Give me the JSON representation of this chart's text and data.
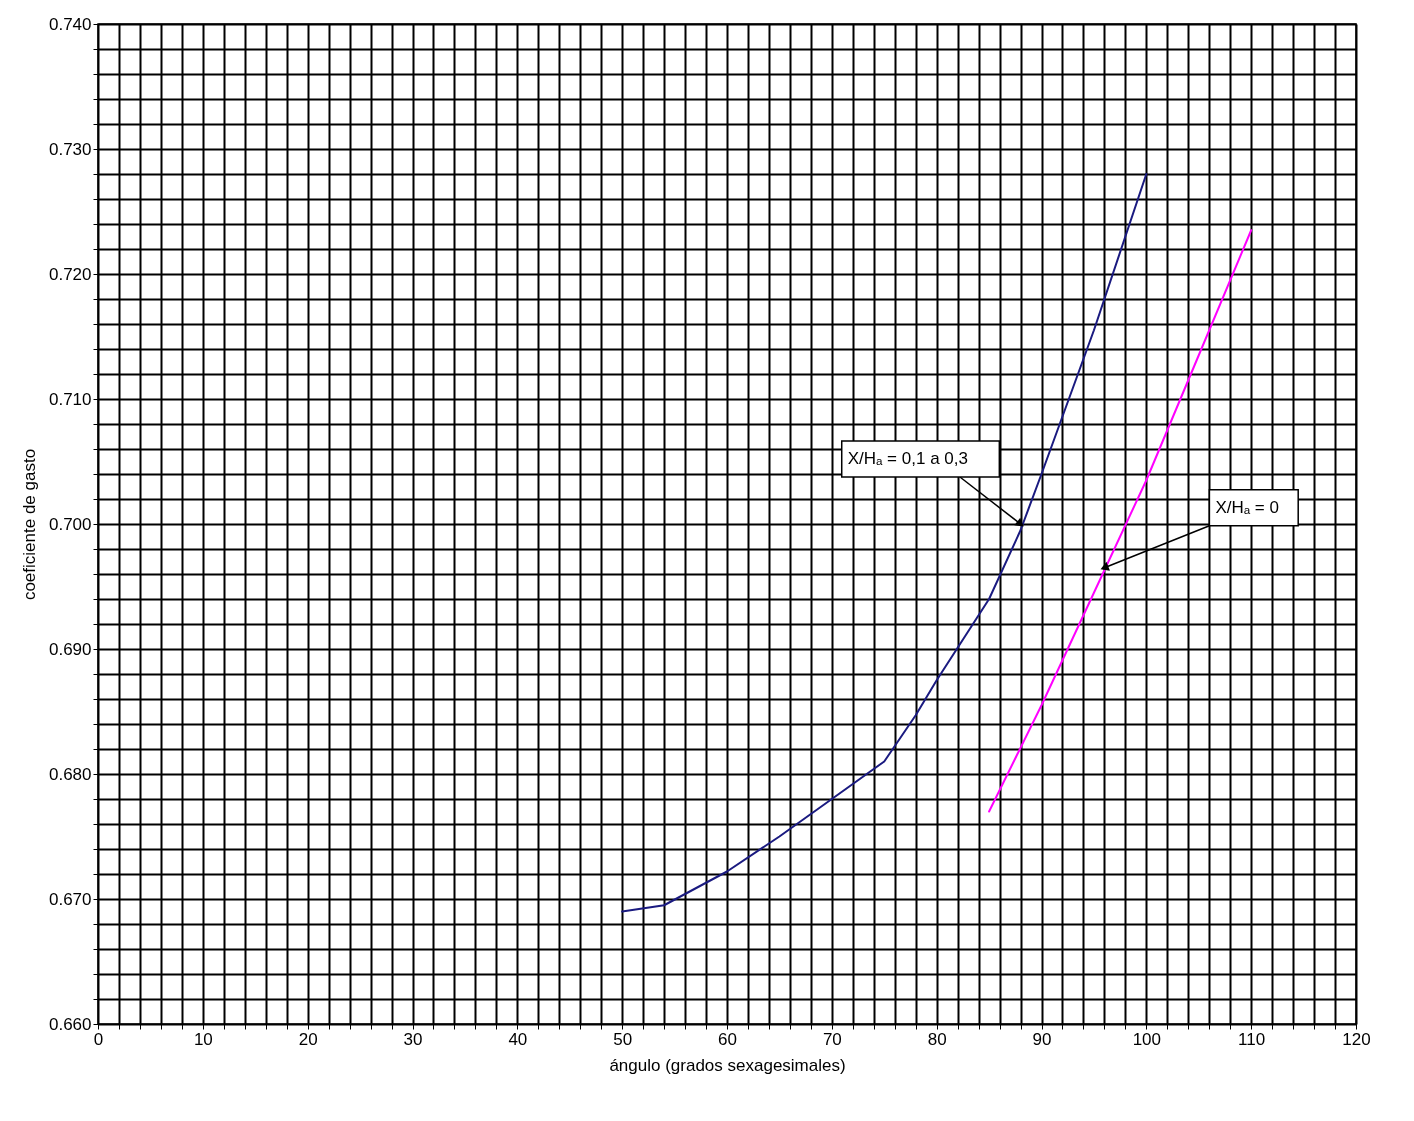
{
  "chart_data": {
    "type": "line",
    "xlabel": "ángulo (grados sexagesimales)",
    "ylabel": "coeficiente de gasto",
    "xlim": [
      0,
      120
    ],
    "xticks": [
      0,
      {
        "value": 2,
        "label": null
      },
      {
        "value": 4,
        "label": null
      },
      {
        "value": 6,
        "label": null
      },
      {
        "value": 8,
        "label": null
      },
      10,
      {
        "value": 12,
        "label": null
      },
      {
        "value": 14,
        "label": null
      },
      {
        "value": 16,
        "label": null
      },
      {
        "value": 18,
        "label": null
      },
      20,
      {
        "value": 22,
        "label": null
      },
      {
        "value": 24,
        "label": null
      },
      {
        "value": 26,
        "label": null
      },
      {
        "value": 28,
        "label": null
      },
      30,
      {
        "value": 32,
        "label": null
      },
      {
        "value": 34,
        "label": null
      },
      {
        "value": 36,
        "label": null
      },
      {
        "value": 38,
        "label": null
      },
      40,
      {
        "value": 42,
        "label": null
      },
      {
        "value": 44,
        "label": null
      },
      {
        "value": 46,
        "label": null
      },
      {
        "value": 48,
        "label": null
      },
      50,
      {
        "value": 52,
        "label": null
      },
      {
        "value": 54,
        "label": null
      },
      {
        "value": 56,
        "label": null
      },
      {
        "value": 58,
        "label": null
      },
      60,
      {
        "value": 62,
        "label": null
      },
      {
        "value": 64,
        "label": null
      },
      {
        "value": 66,
        "label": null
      },
      {
        "value": 68,
        "label": null
      },
      70,
      {
        "value": 72,
        "label": null
      },
      {
        "value": 74,
        "label": null
      },
      {
        "value": 76,
        "label": null
      },
      {
        "value": 78,
        "label": null
      },
      80,
      {
        "value": 82,
        "label": null
      },
      {
        "value": 84,
        "label": null
      },
      {
        "value": 86,
        "label": null
      },
      {
        "value": 88,
        "label": null
      },
      90,
      {
        "value": 92,
        "label": null
      },
      {
        "value": 94,
        "label": null
      },
      {
        "value": 96,
        "label": null
      },
      {
        "value": 98,
        "label": null
      },
      100,
      {
        "value": 102,
        "label": null
      },
      {
        "value": 104,
        "label": null
      },
      {
        "value": 106,
        "label": null
      },
      {
        "value": 108,
        "label": null
      },
      110,
      {
        "value": 112,
        "label": null
      },
      {
        "value": 114,
        "label": null
      },
      {
        "value": 116,
        "label": null
      },
      {
        "value": 118,
        "label": null
      },
      120
    ],
    "ylim": [
      0.66,
      0.74
    ],
    "yticks": [
      {
        "value": 0.66,
        "label": "0.660"
      },
      {
        "value": 0.662,
        "label": null
      },
      {
        "value": 0.664,
        "label": null
      },
      {
        "value": 0.666,
        "label": null
      },
      {
        "value": 0.668,
        "label": null
      },
      {
        "value": 0.67,
        "label": "0.670"
      },
      {
        "value": 0.672,
        "label": null
      },
      {
        "value": 0.674,
        "label": null
      },
      {
        "value": 0.676,
        "label": null
      },
      {
        "value": 0.678,
        "label": null
      },
      {
        "value": 0.68,
        "label": "0.680"
      },
      {
        "value": 0.682,
        "label": null
      },
      {
        "value": 0.684,
        "label": null
      },
      {
        "value": 0.686,
        "label": null
      },
      {
        "value": 0.688,
        "label": null
      },
      {
        "value": 0.69,
        "label": "0.690"
      },
      {
        "value": 0.692,
        "label": null
      },
      {
        "value": 0.694,
        "label": null
      },
      {
        "value": 0.696,
        "label": null
      },
      {
        "value": 0.698,
        "label": null
      },
      {
        "value": 0.7,
        "label": "0.700"
      },
      {
        "value": 0.702,
        "label": null
      },
      {
        "value": 0.704,
        "label": null
      },
      {
        "value": 0.706,
        "label": null
      },
      {
        "value": 0.708,
        "label": null
      },
      {
        "value": 0.71,
        "label": "0.710"
      },
      {
        "value": 0.712,
        "label": null
      },
      {
        "value": 0.714,
        "label": null
      },
      {
        "value": 0.716,
        "label": null
      },
      {
        "value": 0.718,
        "label": null
      },
      {
        "value": 0.72,
        "label": "0.720"
      },
      {
        "value": 0.722,
        "label": null
      },
      {
        "value": 0.724,
        "label": null
      },
      {
        "value": 0.726,
        "label": null
      },
      {
        "value": 0.728,
        "label": null
      },
      {
        "value": 0.73,
        "label": "0.730"
      },
      {
        "value": 0.732,
        "label": null
      },
      {
        "value": 0.734,
        "label": null
      },
      {
        "value": 0.736,
        "label": null
      },
      {
        "value": 0.738,
        "label": null
      },
      {
        "value": 0.74,
        "label": "0.740"
      }
    ],
    "grid": true,
    "marker": "none",
    "line_style": "solid",
    "series": [
      {
        "color": "#1a1a80",
        "x": [
          50,
          54,
          60,
          65,
          70,
          75,
          78,
          80,
          85,
          88,
          90,
          95,
          100
        ],
        "values": [
          0.669,
          0.6695,
          0.6722,
          0.675,
          0.678,
          0.681,
          0.6847,
          0.6875,
          0.694,
          0.6995,
          0.704,
          0.7155,
          0.728
        ]
      },
      {
        "color": "#ff00ff",
        "x": [
          85,
          90,
          95,
          100,
          105,
          110
        ],
        "values": [
          0.677,
          0.6855,
          0.6945,
          0.7035,
          0.7135,
          0.7235
        ]
      }
    ],
    "annotations": [
      {
        "text": "X/Hₐ = 0,1 a 0,3",
        "x": 88,
        "y": 0.7
      },
      {
        "text": "X/Hₐ = 0",
        "x": 96,
        "y": 0.6965
      }
    ]
  }
}
